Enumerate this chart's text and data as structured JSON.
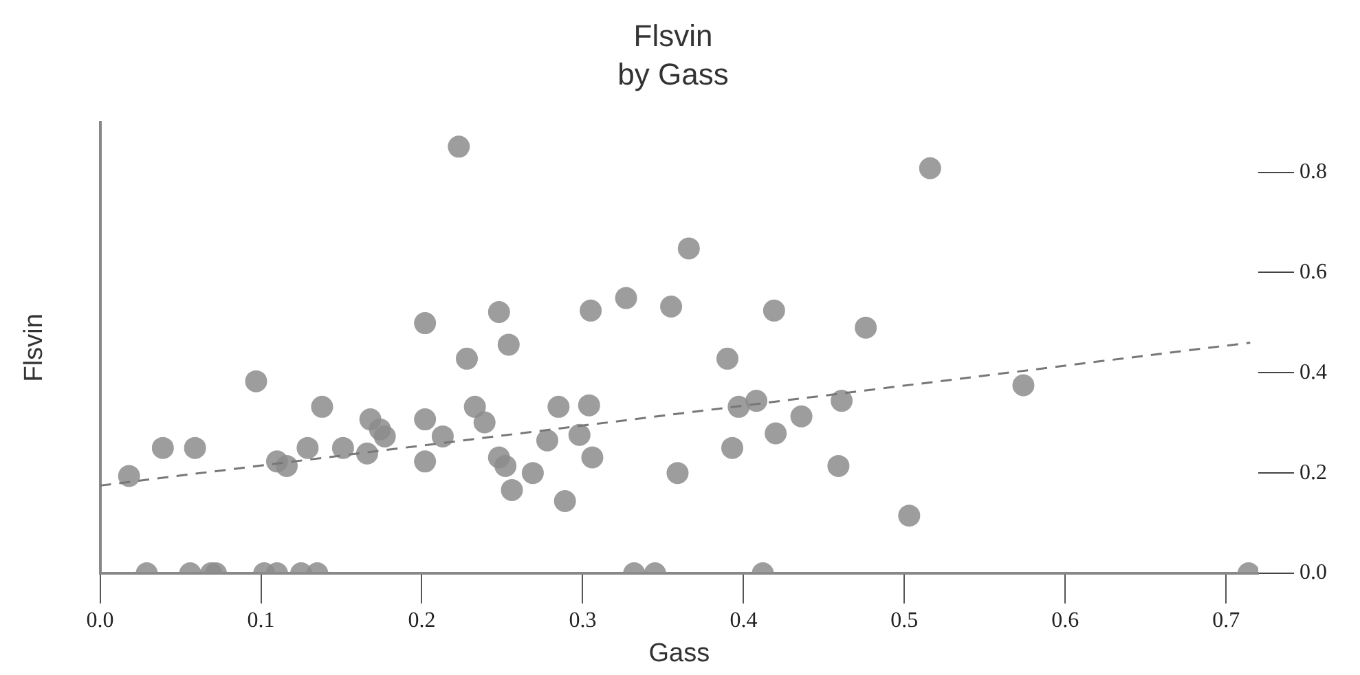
{
  "chart_data": {
    "type": "scatter",
    "title": "Flsvin",
    "subtitle": "by Gass",
    "xlabel": "Gass",
    "ylabel": "Flsvin",
    "xlim": [
      0,
      0.72
    ],
    "ylim": [
      0,
      0.9
    ],
    "xticks": [
      {
        "value": 0,
        "label": "0.0"
      },
      0.1,
      0.2,
      0.3,
      0.4,
      0.5,
      0.6,
      0.7
    ],
    "yticks": [
      {
        "value": 0,
        "label": "0.0"
      },
      0.2,
      0.4,
      0.6,
      0.8
    ],
    "grid": false,
    "legend": false,
    "marker": "circle",
    "series": [
      {
        "color": "#8c8c8c",
        "x": [
          0.018,
          0.039,
          0.059,
          0.097,
          0.11,
          0.116,
          0.129,
          0.138,
          0.151,
          0.166,
          0.168,
          0.174,
          0.177,
          0.202,
          0.202,
          0.202,
          0.213,
          0.223,
          0.228,
          0.233,
          0.239,
          0.248,
          0.248,
          0.252,
          0.254,
          0.256,
          0.269,
          0.278,
          0.285,
          0.289,
          0.298,
          0.304,
          0.305,
          0.306,
          0.327,
          0.355,
          0.359,
          0.366,
          0.39,
          0.393,
          0.397,
          0.408,
          0.419,
          0.42,
          0.436,
          0.459,
          0.461,
          0.476,
          0.503,
          0.516,
          0.574,
          0.029,
          0.056,
          0.069,
          0.072,
          0.102,
          0.11,
          0.125,
          0.135,
          0.332,
          0.345,
          0.412,
          0.714
        ],
        "values": [
          0.194,
          0.25,
          0.25,
          0.383,
          0.223,
          0.214,
          0.25,
          0.332,
          0.25,
          0.239,
          0.307,
          0.287,
          0.273,
          0.499,
          0.307,
          0.223,
          0.273,
          0.851,
          0.428,
          0.332,
          0.301,
          0.521,
          0.231,
          0.214,
          0.456,
          0.166,
          0.2,
          0.265,
          0.332,
          0.144,
          0.276,
          0.335,
          0.524,
          0.231,
          0.549,
          0.532,
          0.2,
          0.648,
          0.428,
          0.25,
          0.332,
          0.344,
          0.524,
          0.279,
          0.313,
          0.214,
          0.344,
          0.49,
          0.115,
          0.808,
          0.375,
          0,
          0,
          0,
          0,
          0,
          0,
          0,
          0,
          0,
          0,
          0,
          0
        ]
      },
      {
        "type": "line",
        "color": "#777777",
        "line_style": "dashed",
        "marker": "none",
        "x": [
          0,
          0.715
        ],
        "values": [
          0.175,
          0.46
        ]
      }
    ]
  }
}
